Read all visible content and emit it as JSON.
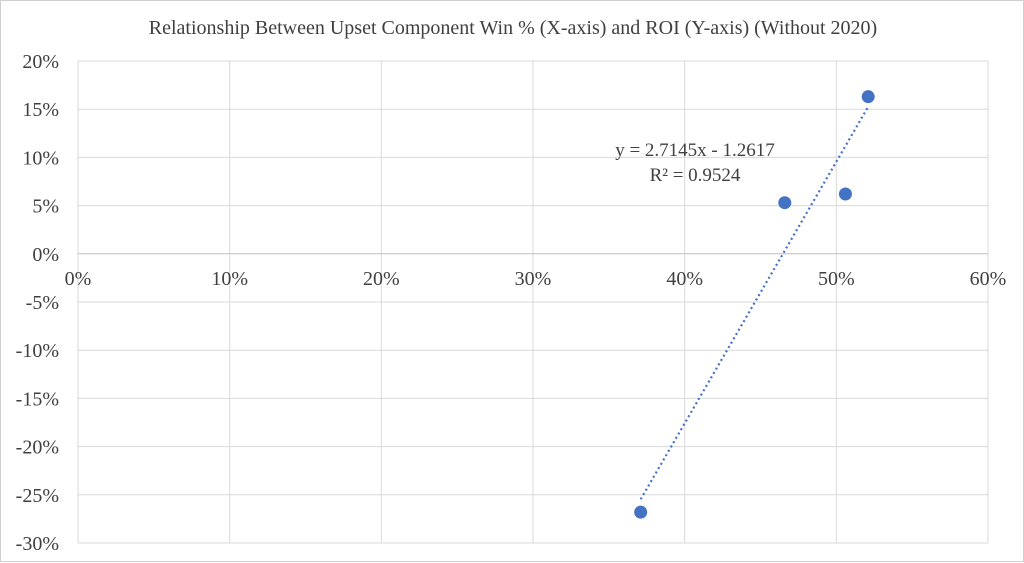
{
  "chart_data": {
    "type": "scatter",
    "title": "Relationship Between Upset Component Win % (X-axis) and ROI (Y-axis) (Without 2020)",
    "xlabel": "",
    "ylabel": "",
    "xlim": [
      0,
      0.6
    ],
    "ylim": [
      -0.3,
      0.2
    ],
    "x_ticks": [
      0,
      0.1,
      0.2,
      0.3,
      0.4,
      0.5,
      0.6
    ],
    "x_tick_labels": [
      "0%",
      "10%",
      "20%",
      "30%",
      "40%",
      "50%",
      "60%"
    ],
    "y_ticks": [
      0.2,
      0.15,
      0.1,
      0.05,
      0,
      -0.05,
      -0.1,
      -0.15,
      -0.2,
      -0.25,
      -0.3
    ],
    "y_tick_labels": [
      "20%",
      "15%",
      "10%",
      "5%",
      "0%",
      "-5%",
      "-10%",
      "-15%",
      "-20%",
      "-25%",
      "-30%"
    ],
    "grid": true,
    "legend": "none",
    "series": [
      {
        "x": [
          0.371,
          0.466,
          0.506,
          0.521
        ],
        "y": [
          -0.268,
          0.053,
          0.062,
          0.163
        ],
        "color": "#4472c4"
      }
    ],
    "trendline": {
      "slope": 2.7145,
      "intercept": -1.2617,
      "x_range": [
        0.371,
        0.521
      ],
      "color": "#4472c4",
      "style": "dotted",
      "equation_label": "y = 2.7145x - 1.2617",
      "r2_label": "R² = 0.9524"
    }
  }
}
